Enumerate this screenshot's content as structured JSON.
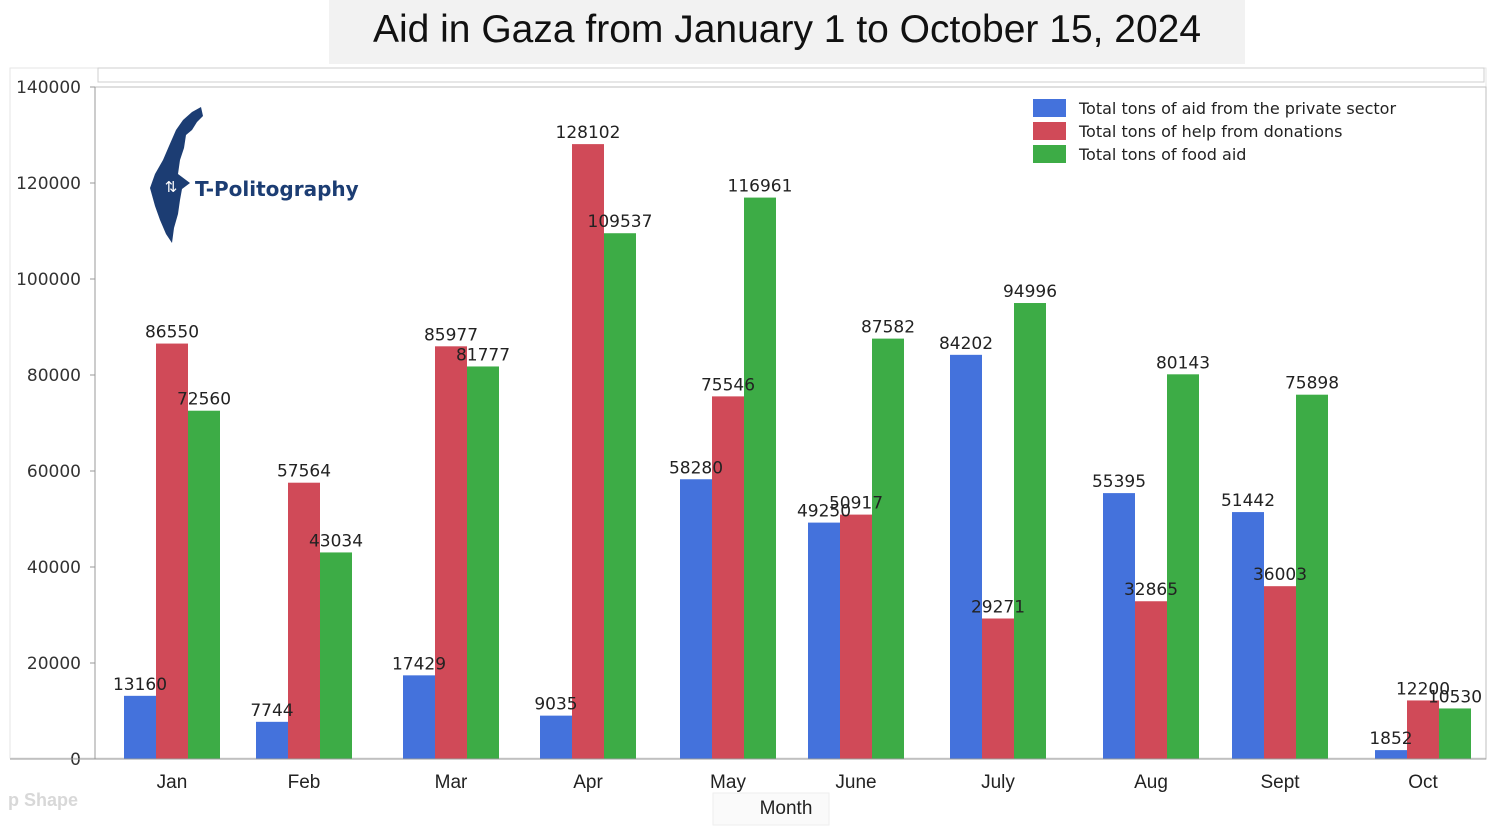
{
  "title": "Aid in Gaza from January 1 to October 15, 2024",
  "logo_text": "T-Politography",
  "watermark_text": "p Shape",
  "chart_data": {
    "type": "bar",
    "title": "Aid in Gaza from January 1 to October 15, 2024",
    "xlabel": "Month",
    "ylabel": "",
    "ylim": [
      0,
      140000
    ],
    "yticks": [
      0,
      20000,
      40000,
      60000,
      80000,
      100000,
      120000,
      140000
    ],
    "grid": false,
    "legend_position": "top-right",
    "categories": [
      "Jan",
      "Feb",
      "Mar",
      "Apr",
      "May",
      "June",
      "July",
      "Aug",
      "Sept",
      "Oct"
    ],
    "series": [
      {
        "name": "Total tons of aid from the private sector",
        "color": "#4472dc",
        "values": [
          13160,
          7744,
          17429,
          9035,
          58280,
          49250,
          84202,
          55395,
          51442,
          1852
        ]
      },
      {
        "name": "Total tons of help from donations",
        "color": "#d04a58",
        "values": [
          86550,
          57564,
          85977,
          128102,
          75546,
          50917,
          29271,
          32865,
          36003,
          12200
        ]
      },
      {
        "name": "Total tons of food aid",
        "color": "#3dac46",
        "values": [
          72560,
          43034,
          81777,
          109537,
          116961,
          87582,
          94996,
          80143,
          75898,
          10530
        ]
      }
    ]
  }
}
